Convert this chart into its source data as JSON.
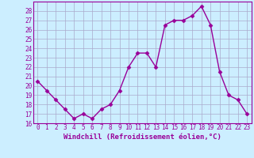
{
  "x": [
    0,
    1,
    2,
    3,
    4,
    5,
    6,
    7,
    8,
    9,
    10,
    11,
    12,
    13,
    14,
    15,
    16,
    17,
    18,
    19,
    20,
    21,
    22,
    23
  ],
  "y": [
    20.5,
    19.5,
    18.5,
    17.5,
    16.5,
    17.0,
    16.5,
    17.5,
    18.0,
    19.5,
    22.0,
    23.5,
    23.5,
    22.0,
    26.5,
    27.0,
    27.0,
    27.5,
    28.5,
    26.5,
    21.5,
    19.0,
    18.5,
    17.0
  ],
  "line_color": "#990099",
  "marker": "D",
  "marker_size": 2.5,
  "line_width": 1.0,
  "xlabel": "Windchill (Refroidissement éolien,°C)",
  "xlabel_fontsize": 6.5,
  "ylim": [
    16,
    29
  ],
  "xlim": [
    -0.5,
    23.5
  ],
  "yticks": [
    16,
    17,
    18,
    19,
    20,
    21,
    22,
    23,
    24,
    25,
    26,
    27,
    28
  ],
  "xticks": [
    0,
    1,
    2,
    3,
    4,
    5,
    6,
    7,
    8,
    9,
    10,
    11,
    12,
    13,
    14,
    15,
    16,
    17,
    18,
    19,
    20,
    21,
    22,
    23
  ],
  "bg_color": "#cceeff",
  "grid_color": "#aaaacc",
  "tick_fontsize": 5.5,
  "tick_color": "#990099",
  "spine_color": "#990099",
  "xlabel_bold": true
}
